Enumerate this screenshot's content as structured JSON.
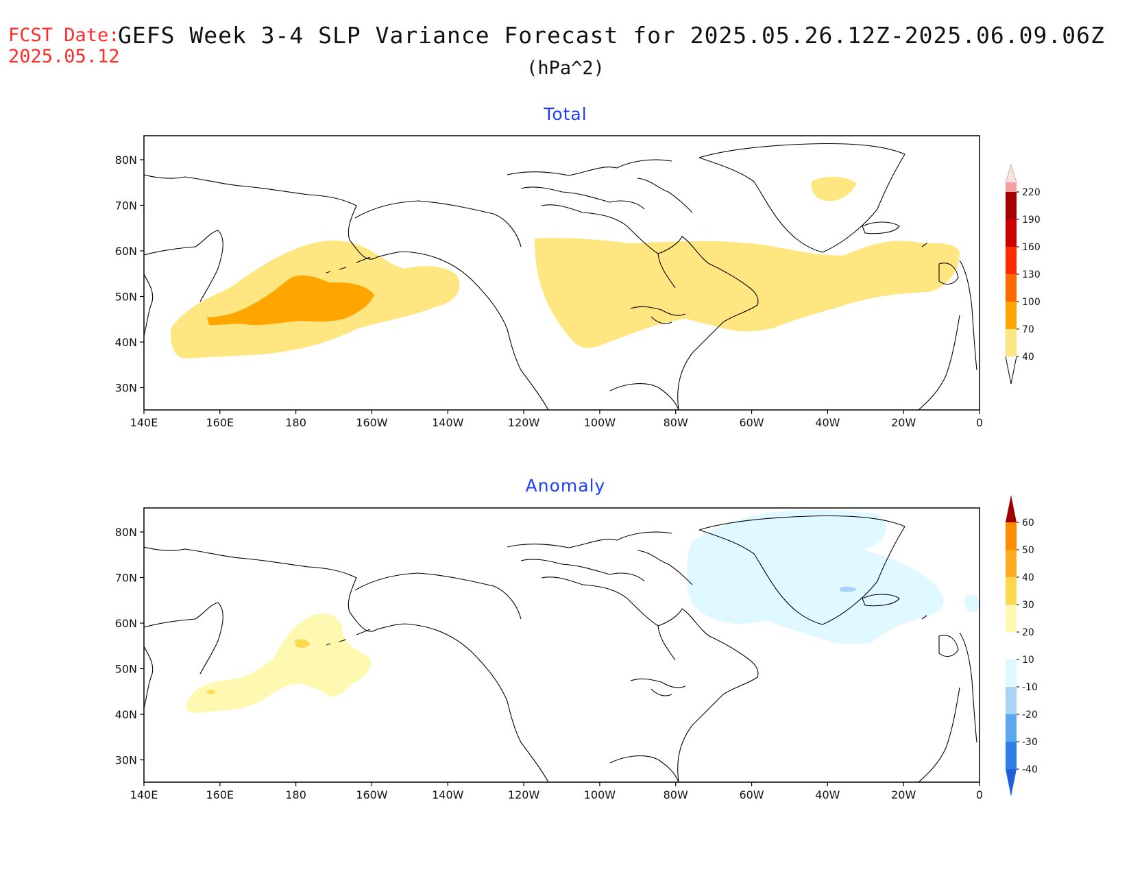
{
  "header": {
    "fcst_label": "FCST Date:",
    "fcst_date": "2025.05.12",
    "title": "GEFS Week 3-4 SLP Variance Forecast for 2025.05.26.12Z-2025.06.09.06Z",
    "units": "(hPa^2)"
  },
  "panels": [
    {
      "title": "Total",
      "lat_ticks": [
        "80N",
        "70N",
        "60N",
        "50N",
        "40N",
        "30N"
      ],
      "lon_ticks": [
        "140E",
        "160E",
        "180",
        "160W",
        "140W",
        "120W",
        "100W",
        "80W",
        "60W",
        "40W",
        "20W",
        "0"
      ],
      "colorbar_labels": [
        "40",
        "70",
        "100",
        "130",
        "160",
        "190",
        "220"
      ],
      "colorbar_colors": [
        "#ffe680",
        "#ffa500",
        "#ff6a00",
        "#ff2a00",
        "#cc0000",
        "#a30000",
        "#f2a0a0",
        "#ffe0e0"
      ]
    },
    {
      "title": "Anomaly",
      "lat_ticks": [
        "80N",
        "70N",
        "60N",
        "50N",
        "40N",
        "30N"
      ],
      "lon_ticks": [
        "140E",
        "160E",
        "180",
        "160W",
        "140W",
        "120W",
        "100W",
        "80W",
        "60W",
        "40W",
        "20W",
        "0"
      ],
      "colorbar_labels": [
        "-40",
        "-30",
        "-20",
        "-10",
        "10",
        "20",
        "30",
        "40",
        "50",
        "60"
      ],
      "colorbar_colors": [
        "#1e5fd8",
        "#2f7fe8",
        "#5aa8f0",
        "#a8d4f6",
        "#e0f8ff",
        "#ffffff",
        "#fff8b0",
        "#ffd850",
        "#ffad1f",
        "#ff8c00",
        "#ff5500",
        "#e01e00",
        "#a00000"
      ]
    }
  ]
}
